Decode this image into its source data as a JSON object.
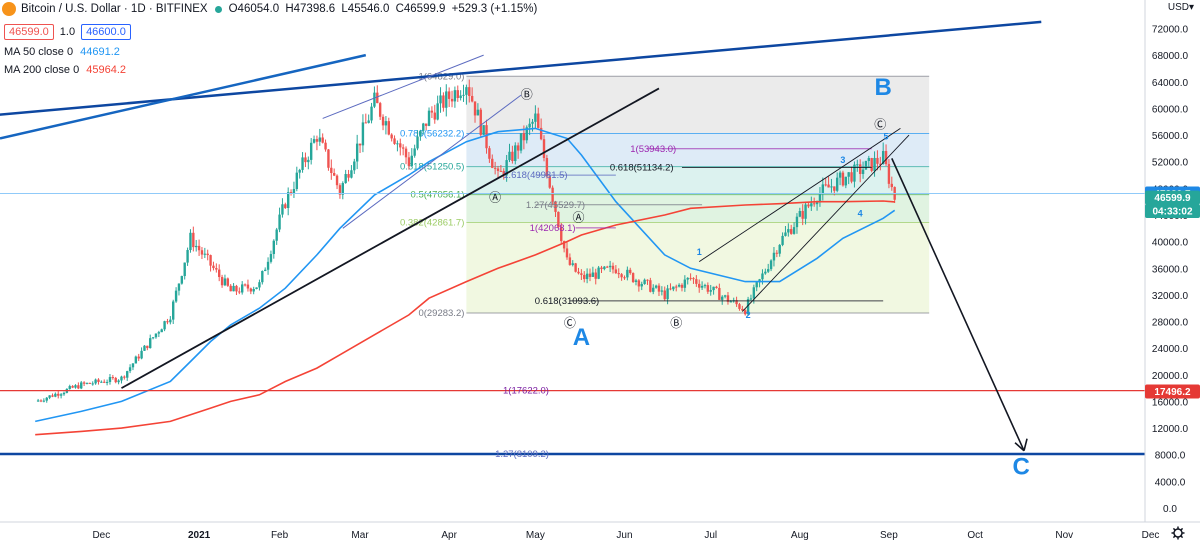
{
  "header": {
    "symbol": "Bitcoin / U.S. Dollar · 1D · BITFINEX",
    "ohlc": [
      "O46054.0",
      "H47398.6",
      "L45546.0",
      "C46599.9",
      "+529.3 (+1.15%)"
    ],
    "sell_price": "46599.0",
    "spread": "1.0",
    "buy_price": "46600.0",
    "currency": "USD",
    "up_color": "#26a69a"
  },
  "indicators": [
    {
      "label": "MA 50 close 0",
      "value": "44691.2",
      "color": "#2196f3"
    },
    {
      "label": "MA 200 close 0",
      "value": "45964.2",
      "color": "#f44336"
    }
  ],
  "price_axis": {
    "ticks": [
      "0.0",
      "4000.0",
      "8000.0",
      "12000.0",
      "16000.0",
      "20000.0",
      "24000.0",
      "28000.0",
      "32000.0",
      "36000.0",
      "40000.0",
      "44000.0",
      "48000.0",
      "52000.0",
      "56000.0",
      "60000.0",
      "64000.0",
      "68000.0",
      "72000.0"
    ],
    "markers": [
      {
        "label": "47230.7",
        "price": 47230.7,
        "color": "#1e88e5"
      },
      {
        "label": "46599.9",
        "price": 46599.9,
        "color": "#26a69a"
      },
      {
        "label": "04:33:02",
        "price": 44600,
        "color": "#26a69a"
      },
      {
        "label": "17496.2",
        "price": 17496.2,
        "color": "#e53935"
      }
    ]
  },
  "time_axis": {
    "labels": [
      "Dec",
      "2021",
      "Feb",
      "Mar",
      "Apr",
      "May",
      "Jun",
      "Jul",
      "Aug",
      "Sep",
      "Oct",
      "Nov",
      "Dec"
    ]
  },
  "fib_levels": [
    {
      "label": "1(64829.0)",
      "price": 64829.0
    },
    {
      "label": "0.786(56232.2)",
      "price": 56232.2
    },
    {
      "label": "0.618(51250.5)",
      "price": 51250.5
    },
    {
      "label": "0.5(47056.1)",
      "price": 47056.1
    },
    {
      "label": "0.382(42861.7)",
      "price": 42861.7
    },
    {
      "label": "0(29283.2)",
      "price": 29283.2
    }
  ],
  "fib_extensions": [
    {
      "label": "1(53943.0)",
      "price": 53943.0
    },
    {
      "label": "0.618(51134.2)",
      "price": 51134.2
    },
    {
      "label": "1.618(49981.5)",
      "price": 49981.5
    },
    {
      "label": "1.27(45529.7)",
      "price": 45529.7
    },
    {
      "label": "1(42068.1)",
      "price": 42068.1
    },
    {
      "label": "0.618(31093.6)",
      "price": 31093.6
    },
    {
      "label": "1(17622.0)",
      "price": 17622.0
    },
    {
      "label": "1.27(8109.2)",
      "price": 8109.2
    }
  ],
  "wave_labels": [
    {
      "text": "Ⓑ",
      "date": "2021-05-05",
      "price": 61500
    },
    {
      "text": "Ⓐ",
      "date": "2021-04-24",
      "price": 46000
    },
    {
      "text": "Ⓐ",
      "date": "2021-05-23",
      "price": 43000
    },
    {
      "text": "Ⓒ",
      "date": "2021-05-20",
      "price": 27200
    },
    {
      "text": "Ⓑ",
      "date": "2021-06-26",
      "price": 27200
    },
    {
      "text": "Ⓒ",
      "date": "2021-09-05",
      "price": 57000
    },
    {
      "text": "1",
      "date": "2021-07-04",
      "price": 38000
    },
    {
      "text": "2",
      "date": "2021-07-21",
      "price": 28500
    },
    {
      "text": "3",
      "date": "2021-08-23",
      "price": 51800
    },
    {
      "text": "4",
      "date": "2021-08-29",
      "price": 43800
    },
    {
      "text": "5",
      "date": "2021-09-07",
      "price": 55300
    }
  ],
  "big_labels": [
    {
      "text": "A",
      "date": "2021-05-24",
      "price": 24500
    },
    {
      "text": "B",
      "date": "2021-09-06",
      "price": 62000
    },
    {
      "text": "C",
      "date": "2021-10-24",
      "price": 5000
    }
  ],
  "chart_data": {
    "type": "line",
    "title": "Bitcoin / U.S. Dollar · 1D · BITFINEX",
    "xlabel": "",
    "ylabel": "USD",
    "ylim": [
      0,
      74000
    ],
    "scale": "linear",
    "grid": false,
    "x": [
      "2020-11-15",
      "2020-12-01",
      "2020-12-15",
      "2021-01-01",
      "2021-01-08",
      "2021-01-15",
      "2021-01-22",
      "2021-02-01",
      "2021-02-10",
      "2021-02-21",
      "2021-03-01",
      "2021-03-13",
      "2021-03-25",
      "2021-04-01",
      "2021-04-14",
      "2021-04-25",
      "2021-05-08",
      "2021-05-19",
      "2021-05-24",
      "2021-06-05",
      "2021-06-22",
      "2021-07-01",
      "2021-07-20",
      "2021-08-01",
      "2021-08-14",
      "2021-08-23",
      "2021-09-06",
      "2021-09-10"
    ],
    "series": [
      {
        "name": "",
        "values": [
          16000,
          18500,
          19500,
          29000,
          40500,
          36500,
          32500,
          33500,
          46000,
          56000,
          47500,
          61000,
          52000,
          59000,
          64000,
          49500,
          58500,
          37000,
          34500,
          36000,
          32000,
          34500,
          29800,
          40000,
          47000,
          49500,
          52500,
          46600
        ]
      },
      {
        "name": "MA 50 close 0",
        "values": [
          13000,
          14500,
          16000,
          19000,
          22000,
          25000,
          27500,
          30000,
          33000,
          38000,
          42000,
          47000,
          50000,
          52000,
          55000,
          56500,
          57000,
          55500,
          53000,
          46000,
          38000,
          36000,
          34000,
          34000,
          37500,
          40500,
          43500,
          44700
        ]
      },
      {
        "name": "MA 200 close 0",
        "values": [
          11000,
          11500,
          12000,
          13000,
          14000,
          15000,
          16000,
          17000,
          19000,
          21000,
          23000,
          26000,
          29000,
          31500,
          34000,
          36000,
          38000,
          40000,
          41000,
          42500,
          44000,
          45000,
          45500,
          45700,
          46000,
          46000,
          46100,
          45964
        ]
      }
    ],
    "trendlines": [
      {
        "from": {
          "date": "2020-11-01",
          "price": 59000
        },
        "to": {
          "date": "2021-10-31",
          "price": 73000
        }
      },
      {
        "from": {
          "date": "2021-01-08",
          "price": 44000
        },
        "to": {
          "date": "2021-06-20",
          "price": 63000
        }
      }
    ]
  }
}
